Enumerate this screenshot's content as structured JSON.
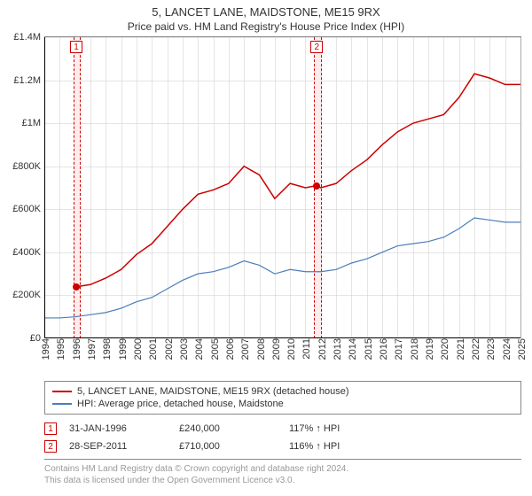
{
  "title": "5, LANCET LANE, MAIDSTONE, ME15 9RX",
  "subtitle": "Price paid vs. HM Land Registry's House Price Index (HPI)",
  "chart": {
    "type": "line",
    "background_color": "#ffffff",
    "grid_color": "#cccccc",
    "axis_color": "#000000",
    "xlim": [
      1994,
      2025
    ],
    "ylim": [
      0,
      1400000
    ],
    "y_ticks": [
      0,
      200000,
      400000,
      600000,
      800000,
      1000000,
      1200000,
      1400000
    ],
    "y_tick_labels": [
      "£0",
      "£200K",
      "£400K",
      "£600K",
      "£800K",
      "£1M",
      "£1.2M",
      "£1.4M"
    ],
    "x_ticks": [
      1994,
      1995,
      1996,
      1997,
      1998,
      1999,
      2000,
      2001,
      2002,
      2003,
      2004,
      2005,
      2006,
      2007,
      2008,
      2009,
      2010,
      2011,
      2012,
      2013,
      2014,
      2015,
      2016,
      2017,
      2018,
      2019,
      2020,
      2021,
      2022,
      2023,
      2024,
      2025
    ],
    "label_fontsize": 11,
    "series": [
      {
        "name": "property",
        "label": "5, LANCET LANE, MAIDSTONE, ME15 9RX (detached house)",
        "color": "#cc0000",
        "line_width": 1.5,
        "data": [
          [
            1996.08,
            240000
          ],
          [
            1997,
            250000
          ],
          [
            1998,
            280000
          ],
          [
            1999,
            320000
          ],
          [
            2000,
            390000
          ],
          [
            2001,
            440000
          ],
          [
            2002,
            520000
          ],
          [
            2003,
            600000
          ],
          [
            2004,
            670000
          ],
          [
            2005,
            690000
          ],
          [
            2006,
            720000
          ],
          [
            2007,
            800000
          ],
          [
            2008,
            760000
          ],
          [
            2009,
            650000
          ],
          [
            2010,
            720000
          ],
          [
            2011,
            700000
          ],
          [
            2011.74,
            710000
          ],
          [
            2012,
            700000
          ],
          [
            2013,
            720000
          ],
          [
            2014,
            780000
          ],
          [
            2015,
            830000
          ],
          [
            2016,
            900000
          ],
          [
            2017,
            960000
          ],
          [
            2018,
            1000000
          ],
          [
            2019,
            1020000
          ],
          [
            2020,
            1040000
          ],
          [
            2021,
            1120000
          ],
          [
            2022,
            1230000
          ],
          [
            2023,
            1210000
          ],
          [
            2024,
            1180000
          ],
          [
            2025,
            1180000
          ]
        ]
      },
      {
        "name": "hpi",
        "label": "HPI: Average price, detached house, Maidstone",
        "color": "#4a7ebb",
        "line_width": 1.2,
        "data": [
          [
            1994,
            95000
          ],
          [
            1995,
            95000
          ],
          [
            1996,
            100000
          ],
          [
            1997,
            110000
          ],
          [
            1998,
            120000
          ],
          [
            1999,
            140000
          ],
          [
            2000,
            170000
          ],
          [
            2001,
            190000
          ],
          [
            2002,
            230000
          ],
          [
            2003,
            270000
          ],
          [
            2004,
            300000
          ],
          [
            2005,
            310000
          ],
          [
            2006,
            330000
          ],
          [
            2007,
            360000
          ],
          [
            2008,
            340000
          ],
          [
            2009,
            300000
          ],
          [
            2010,
            320000
          ],
          [
            2011,
            310000
          ],
          [
            2012,
            310000
          ],
          [
            2013,
            320000
          ],
          [
            2014,
            350000
          ],
          [
            2015,
            370000
          ],
          [
            2016,
            400000
          ],
          [
            2017,
            430000
          ],
          [
            2018,
            440000
          ],
          [
            2019,
            450000
          ],
          [
            2020,
            470000
          ],
          [
            2021,
            510000
          ],
          [
            2022,
            560000
          ],
          [
            2023,
            550000
          ],
          [
            2024,
            540000
          ],
          [
            2025,
            540000
          ]
        ]
      }
    ],
    "sale_markers": [
      {
        "num": "1",
        "year": 1996.08,
        "price": 240000
      },
      {
        "num": "2",
        "year": 2011.74,
        "price": 710000
      }
    ],
    "sale_band_color": "#fcecec",
    "sale_marker_border": "#cc0000",
    "sale_band_width_years": 0.4
  },
  "legend": {
    "items": [
      {
        "color": "#cc0000",
        "label": "5, LANCET LANE, MAIDSTONE, ME15 9RX (detached house)"
      },
      {
        "color": "#4a7ebb",
        "label": "HPI: Average price, detached house, Maidstone"
      }
    ]
  },
  "sales_table": {
    "rows": [
      {
        "num": "1",
        "date": "31-JAN-1996",
        "price": "£240,000",
        "pct": "117% ↑ HPI"
      },
      {
        "num": "2",
        "date": "28-SEP-2011",
        "price": "£710,000",
        "pct": "116% ↑ HPI"
      }
    ]
  },
  "attribution": {
    "line1": "Contains HM Land Registry data © Crown copyright and database right 2024.",
    "line2": "This data is licensed under the Open Government Licence v3.0."
  }
}
